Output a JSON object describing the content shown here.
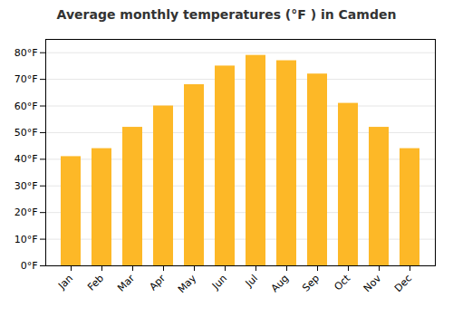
{
  "chart_data": {
    "type": "bar",
    "title": "Average monthly temperatures (°F ) in Camden",
    "categories": [
      "Jan",
      "Feb",
      "Mar",
      "Apr",
      "May",
      "Jun",
      "Jul",
      "Aug",
      "Sep",
      "Oct",
      "Nov",
      "Dec"
    ],
    "values": [
      41,
      44,
      52,
      60,
      68,
      75,
      79,
      77,
      72,
      61,
      52,
      44
    ],
    "color": "#FDB827",
    "ylim": [
      0,
      85
    ],
    "yticks": [
      {
        "value": 0,
        "label": "0°F"
      },
      {
        "value": 10,
        "label": "10°F"
      },
      {
        "value": 20,
        "label": "20°F"
      },
      {
        "value": 30,
        "label": "30°F"
      },
      {
        "value": 40,
        "label": "40°F"
      },
      {
        "value": 50,
        "label": "50°F"
      },
      {
        "value": 60,
        "label": "60°F"
      },
      {
        "value": 70,
        "label": "70°F"
      },
      {
        "value": 80,
        "label": "80°F"
      }
    ],
    "grid": true
  }
}
